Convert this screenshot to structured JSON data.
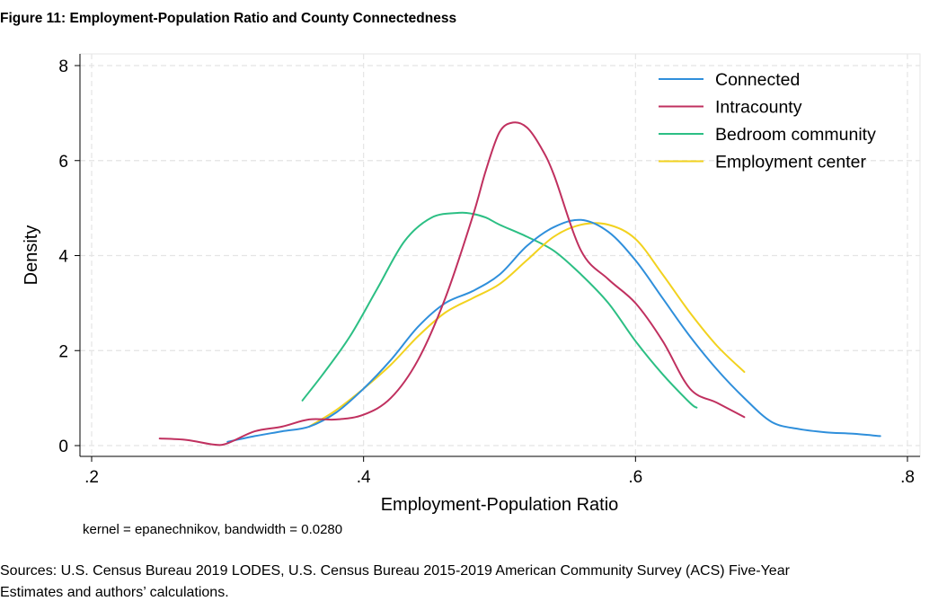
{
  "figure": {
    "title": "Figure 11: Employment-Population Ratio and County Connectedness",
    "sources_line1": "Sources: U.S. Census Bureau 2019 LODES, U.S. Census Bureau 2015-2019 American Community Survey (ACS) Five-Year",
    "sources_line2": "Estimates and authors’ calculations."
  },
  "chart_data": {
    "type": "line",
    "title": "",
    "xlabel": "Employment-Population Ratio",
    "ylabel": "Density",
    "note": "kernel = epanechnikov, bandwidth = 0.0280",
    "xlim": [
      0.2,
      0.8
    ],
    "ylim": [
      0,
      8
    ],
    "xticks": [
      0.2,
      0.4,
      0.6,
      0.8
    ],
    "xtick_labels": [
      ".2",
      ".4",
      ".6",
      ".8"
    ],
    "yticks": [
      0,
      2,
      4,
      6,
      8
    ],
    "ytick_labels": [
      "0",
      "2",
      "4",
      "6",
      "8"
    ],
    "grid": true,
    "legend_position": "top-right",
    "series": [
      {
        "name": "Connected",
        "color": "#2f8fdb",
        "x": [
          0.3,
          0.32,
          0.34,
          0.36,
          0.38,
          0.4,
          0.42,
          0.44,
          0.46,
          0.48,
          0.5,
          0.52,
          0.54,
          0.56,
          0.58,
          0.6,
          0.62,
          0.64,
          0.66,
          0.68,
          0.7,
          0.72,
          0.74,
          0.76,
          0.78
        ],
        "values": [
          0.08,
          0.2,
          0.3,
          0.4,
          0.7,
          1.2,
          1.8,
          2.5,
          3.0,
          3.25,
          3.6,
          4.2,
          4.6,
          4.75,
          4.5,
          3.9,
          3.1,
          2.3,
          1.6,
          1.0,
          0.5,
          0.35,
          0.28,
          0.25,
          0.2
        ]
      },
      {
        "name": "Intracounty",
        "color": "#c0305f",
        "x": [
          0.25,
          0.27,
          0.29,
          0.3,
          0.32,
          0.34,
          0.36,
          0.38,
          0.4,
          0.42,
          0.44,
          0.46,
          0.48,
          0.49,
          0.5,
          0.51,
          0.52,
          0.53,
          0.54,
          0.56,
          0.58,
          0.6,
          0.62,
          0.64,
          0.66,
          0.68
        ],
        "values": [
          0.15,
          0.12,
          0.02,
          0.05,
          0.3,
          0.4,
          0.55,
          0.55,
          0.65,
          1.0,
          1.8,
          3.1,
          4.8,
          5.8,
          6.6,
          6.8,
          6.7,
          6.3,
          5.7,
          4.1,
          3.5,
          3.0,
          2.2,
          1.2,
          0.9,
          0.6
        ]
      },
      {
        "name": "Bedroom community",
        "color": "#2cbf84",
        "x": [
          0.355,
          0.37,
          0.39,
          0.41,
          0.43,
          0.45,
          0.47,
          0.48,
          0.49,
          0.5,
          0.52,
          0.54,
          0.56,
          0.58,
          0.6,
          0.62,
          0.64,
          0.645
        ],
        "values": [
          0.95,
          1.5,
          2.3,
          3.3,
          4.3,
          4.8,
          4.9,
          4.88,
          4.8,
          4.65,
          4.4,
          4.1,
          3.6,
          3.0,
          2.2,
          1.5,
          0.9,
          0.8
        ]
      },
      {
        "name": "Employment center",
        "color": "#f2d21f",
        "x": [
          0.36,
          0.38,
          0.4,
          0.42,
          0.44,
          0.46,
          0.48,
          0.5,
          0.52,
          0.54,
          0.56,
          0.58,
          0.6,
          0.62,
          0.64,
          0.66,
          0.68
        ],
        "values": [
          0.4,
          0.75,
          1.2,
          1.7,
          2.3,
          2.8,
          3.1,
          3.4,
          3.9,
          4.4,
          4.65,
          4.65,
          4.35,
          3.6,
          2.8,
          2.1,
          1.55
        ]
      }
    ]
  }
}
